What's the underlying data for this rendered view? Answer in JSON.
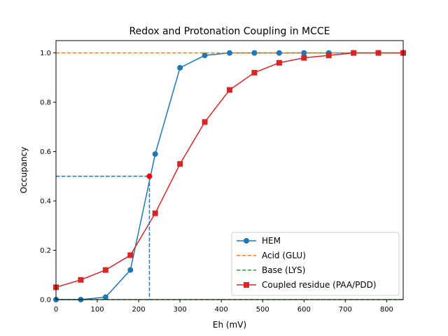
{
  "chart_data": {
    "type": "line",
    "title": "Redox and Protonation Coupling in MCCE",
    "xlabel": "Eh (mV)",
    "ylabel": "Occupancy",
    "xlim": [
      0,
      840
    ],
    "ylim": [
      0,
      1.05
    ],
    "xticks": [
      0,
      100,
      200,
      300,
      400,
      500,
      600,
      700,
      800
    ],
    "yticks": [
      0.0,
      0.2,
      0.4,
      0.6,
      0.8,
      1.0
    ],
    "xtick_labels": [
      "0",
      "100",
      "200",
      "300",
      "400",
      "500",
      "600",
      "700",
      "800"
    ],
    "ytick_labels": [
      "0.0",
      "0.2",
      "0.4",
      "0.6",
      "0.8",
      "1.0"
    ],
    "grid": false,
    "legend_position": "lower-right",
    "series": [
      {
        "name": "HEM",
        "style": "line-circle",
        "color": "#1f77b4",
        "x": [
          0,
          60,
          120,
          180,
          240,
          300,
          360,
          420,
          480,
          540,
          600,
          660,
          720,
          780,
          840
        ],
        "values": [
          0.0,
          0.0,
          0.01,
          0.12,
          0.59,
          0.94,
          0.99,
          1.0,
          1.0,
          1.0,
          1.0,
          1.0,
          1.0,
          1.0,
          1.0
        ]
      },
      {
        "name": "Acid (GLU)",
        "style": "dashed",
        "color": "#ff7f0e",
        "x": [
          0,
          840
        ],
        "values": [
          1.0,
          1.0
        ]
      },
      {
        "name": "Base (LYS)",
        "style": "dashed",
        "color": "#2ca02c",
        "x": [
          0,
          840
        ],
        "values": [
          0.0,
          0.0
        ]
      },
      {
        "name": "Coupled residue (PAA/PDD)",
        "style": "line-square",
        "color": "#d62728",
        "x": [
          0,
          60,
          120,
          180,
          240,
          300,
          360,
          420,
          480,
          540,
          600,
          660,
          720,
          780,
          840
        ],
        "values": [
          0.05,
          0.08,
          0.12,
          0.18,
          0.35,
          0.55,
          0.72,
          0.85,
          0.92,
          0.96,
          0.98,
          0.99,
          1.0,
          1.0,
          1.0
        ]
      }
    ],
    "annotations": [
      {
        "type": "midpoint-marker",
        "x": 226,
        "y": 0.5,
        "guide_color": "#1f77b4",
        "point_color": "#ff0000"
      }
    ]
  }
}
